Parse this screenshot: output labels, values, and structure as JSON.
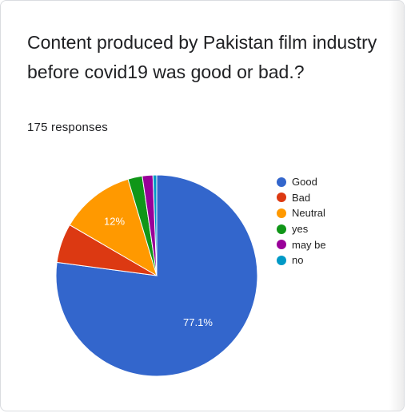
{
  "question": {
    "title": "Content produced by Pakistan film industry before covid19 was good or bad.?",
    "responses_label": "175 responses"
  },
  "chart_data": {
    "type": "pie",
    "title": "Content produced by Pakistan film industry before covid19 was good or bad.?",
    "total_responses": 175,
    "slices": [
      {
        "label": "Good",
        "percent": 77.1,
        "color": "#3366cc",
        "data_label": "77.1%"
      },
      {
        "label": "Bad",
        "percent": 6.3,
        "color": "#dc3912",
        "data_label": ""
      },
      {
        "label": "Neutral",
        "percent": 12,
        "color": "#ff9900",
        "data_label": "12%"
      },
      {
        "label": "yes",
        "percent": 2.3,
        "color": "#109618",
        "data_label": ""
      },
      {
        "label": "may be",
        "percent": 1.7,
        "color": "#990099",
        "data_label": ""
      },
      {
        "label": "no",
        "percent": 0.6,
        "color": "#0099c6",
        "data_label": ""
      }
    ],
    "legend_position": "right"
  }
}
